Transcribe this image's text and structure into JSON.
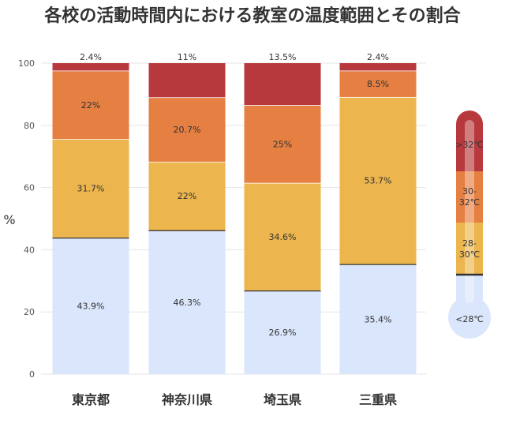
{
  "chart_data": {
    "type": "bar",
    "stacked": true,
    "title": "各校の活動時間内における教室の温度範囲とその割合",
    "ylabel": "%",
    "ylim": [
      0,
      100
    ],
    "yticks": [
      0,
      20,
      40,
      60,
      80,
      100
    ],
    "categories": [
      "東京都",
      "神奈川県",
      "埼玉県",
      "三重県"
    ],
    "series": [
      {
        "name": "<28℃",
        "color": "#dae6fb",
        "values": [
          43.9,
          46.3,
          26.9,
          35.4
        ],
        "labels": [
          "43.9%",
          "46.3%",
          "26.9%",
          "35.4%"
        ]
      },
      {
        "name": "28-30℃",
        "color": "#ecb54e",
        "values": [
          31.7,
          22,
          34.6,
          53.7
        ],
        "labels": [
          "31.7%",
          "22%",
          "34.6%",
          "53.7%"
        ]
      },
      {
        "name": "30-32℃",
        "color": "#e57f42",
        "values": [
          22,
          20.7,
          25,
          8.5
        ],
        "labels": [
          "22%",
          "20.7%",
          "25%",
          "8.5%"
        ]
      },
      {
        "name": ">32℃",
        "color": "#b8393d",
        "values": [
          2.4,
          11,
          13.5,
          2.4
        ],
        "labels": [
          "2.4%",
          "11%",
          "13.5%",
          "2.4%"
        ]
      }
    ],
    "legend": {
      "placement": "right",
      "style": "thermometer",
      "labels": [
        ">32℃",
        "30-\n32℃",
        "28-\n30℃",
        "<28℃"
      ]
    },
    "grid": true
  }
}
